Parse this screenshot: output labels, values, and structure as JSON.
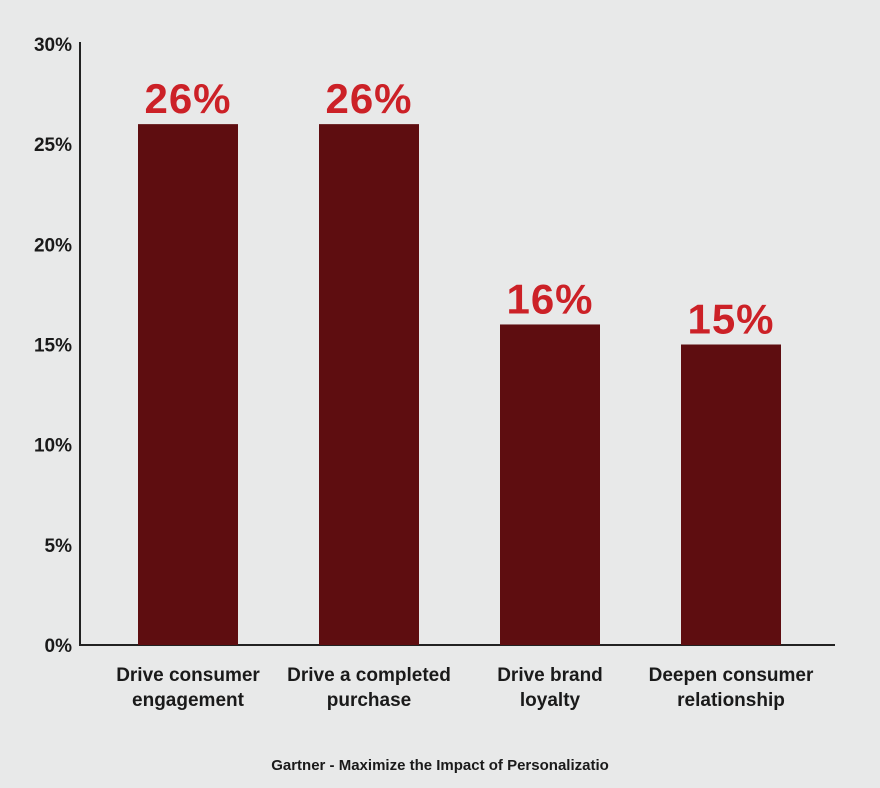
{
  "chart_data": {
    "type": "bar",
    "categories": [
      [
        "Drive consumer",
        "engagement"
      ],
      [
        "Drive a completed",
        "purchase"
      ],
      [
        "Drive brand",
        "loyalty"
      ],
      [
        "Deepen consumer",
        "relationship"
      ]
    ],
    "values": [
      26,
      26,
      16,
      15
    ],
    "data_labels": [
      "26%",
      "26%",
      "16%",
      "15%"
    ],
    "y_ticks": [
      0,
      5,
      10,
      15,
      20,
      25,
      30
    ],
    "y_tick_labels": [
      "0%",
      "5%",
      "10%",
      "15%",
      "20%",
      "25%",
      "30%"
    ],
    "ylim": [
      0,
      30
    ],
    "grid": false,
    "bar_color": "#5e0d10",
    "label_color": "#cc2127"
  },
  "caption": "Gartner - Maximize the Impact of Personalizatio"
}
